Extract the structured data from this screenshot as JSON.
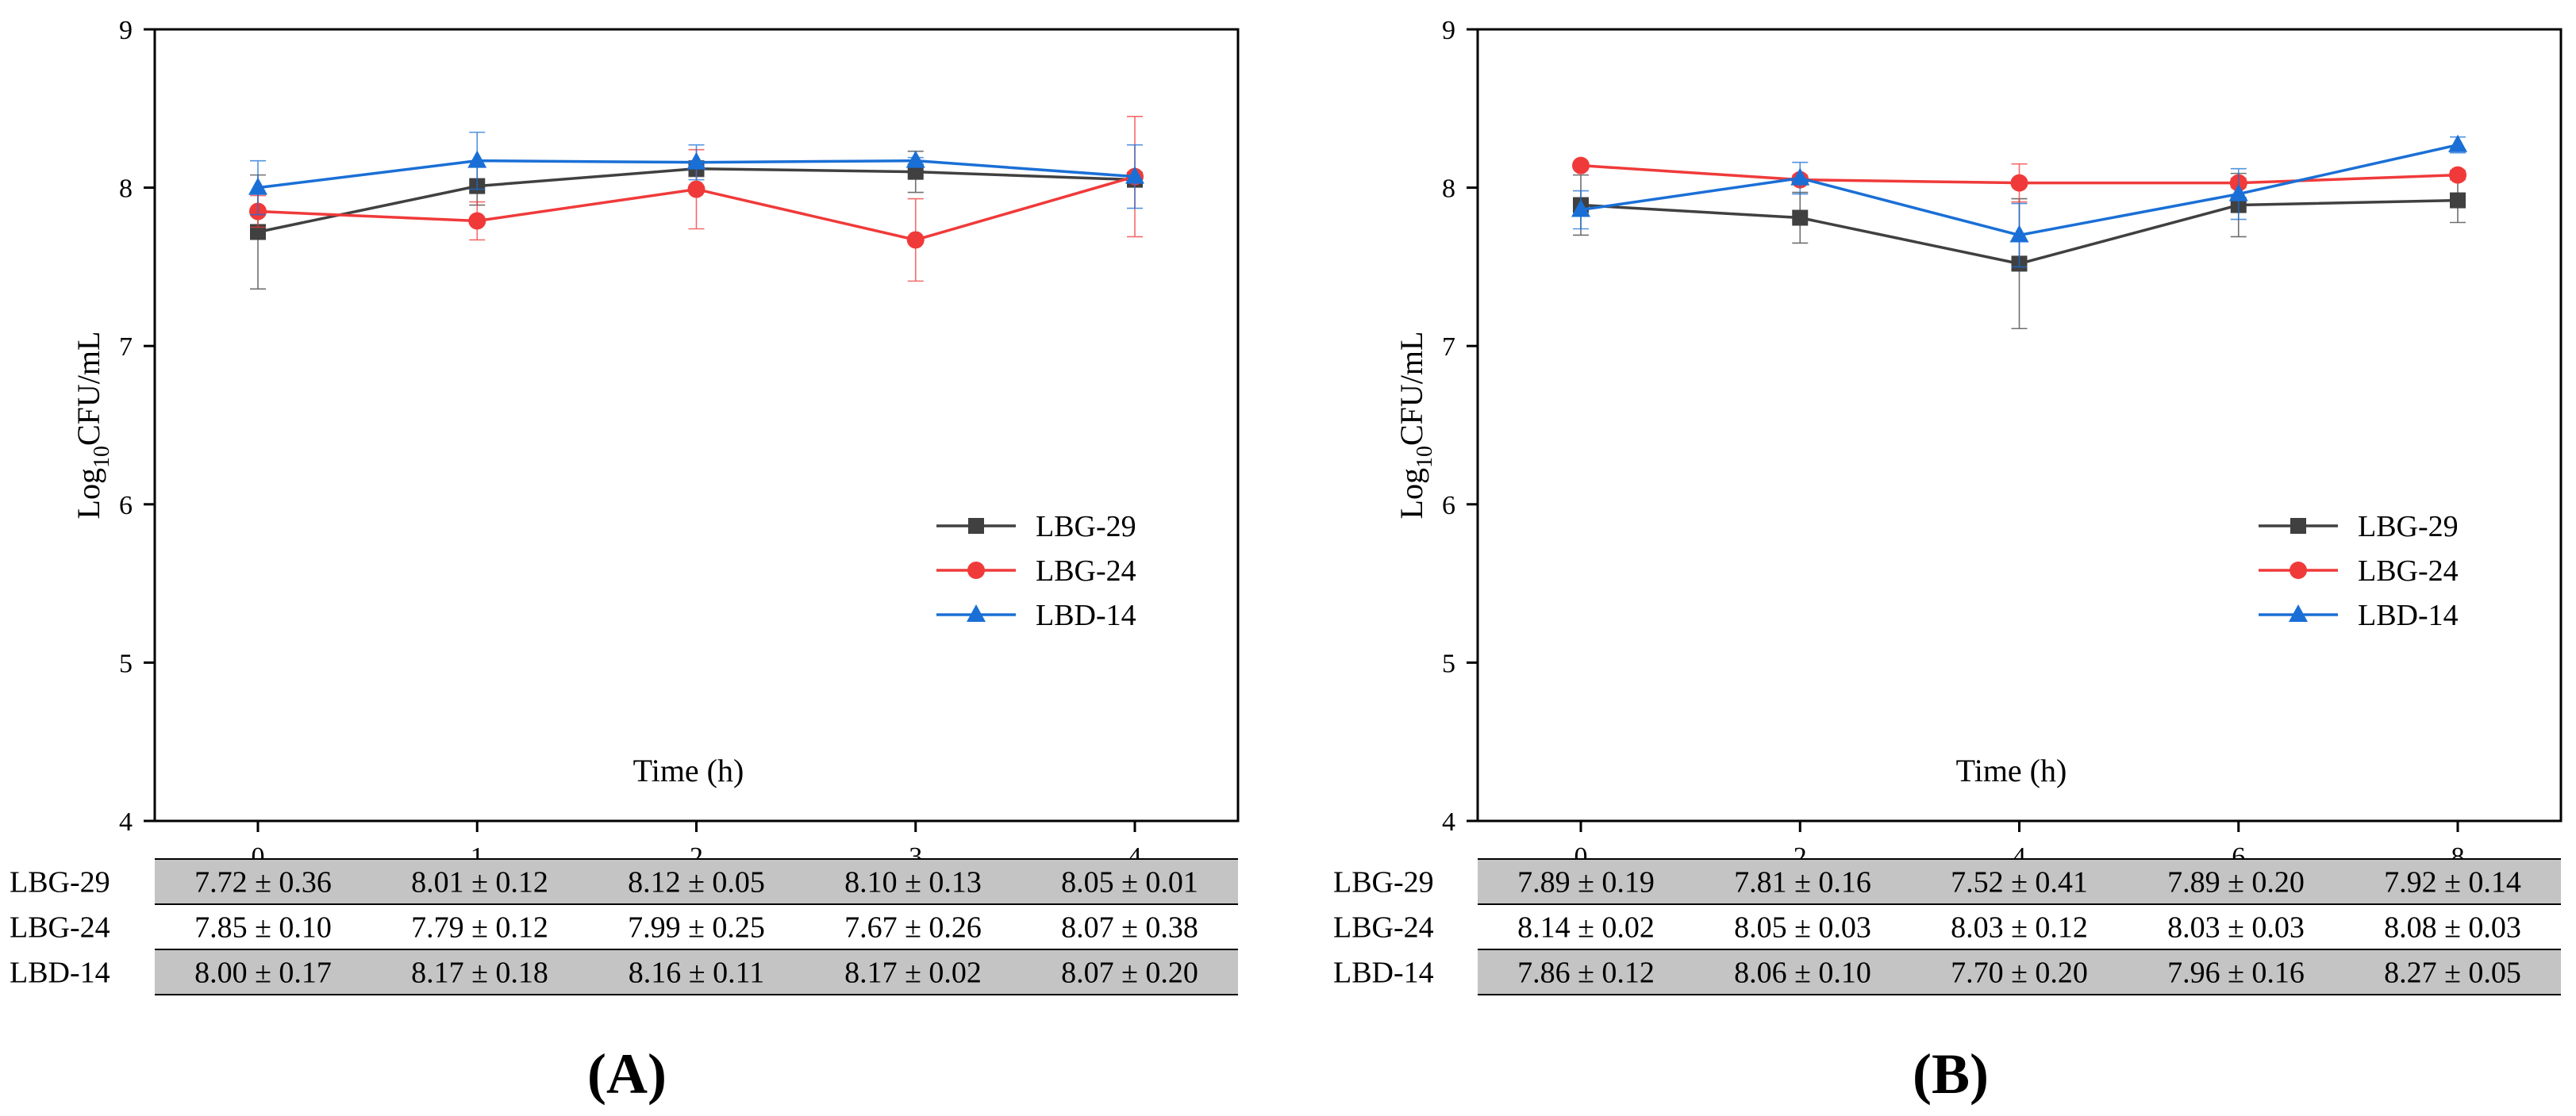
{
  "chart_data": [
    {
      "type": "line",
      "panel": "(A)",
      "xlabel": "Time (h)",
      "ylabel_main": "Log",
      "ylabel_sub": "10",
      "ylabel_rest": "CFU/mL",
      "x": [
        0,
        1,
        2,
        3,
        4
      ],
      "x_tick_labels": [
        "0",
        "1",
        "2",
        "3",
        "4"
      ],
      "ylim": [
        4,
        9
      ],
      "y_ticks": [
        4,
        5,
        6,
        7,
        8,
        9
      ],
      "y_tick_labels": [
        "4",
        "5",
        "6",
        "7",
        "8",
        "9"
      ],
      "legend_position": "right",
      "series": [
        {
          "name": "LBG-29",
          "color": "#404040",
          "marker": "square",
          "values": [
            7.72,
            8.01,
            8.12,
            8.1,
            8.05
          ],
          "errors": [
            0.36,
            0.12,
            0.05,
            0.13,
            0.01
          ],
          "table": [
            "7.72 ± 0.36",
            "8.01 ± 0.12",
            "8.12 ± 0.05",
            "8.10 ± 0.13",
            "8.05 ± 0.01"
          ]
        },
        {
          "name": "LBG-24",
          "color": "#f03a3a",
          "marker": "circle",
          "values": [
            7.85,
            7.79,
            7.99,
            7.67,
            8.07
          ],
          "errors": [
            0.1,
            0.12,
            0.25,
            0.26,
            0.38
          ],
          "table": [
            "7.85 ± 0.10",
            "7.79 ± 0.12",
            "7.99 ± 0.25",
            "7.67 ± 0.26",
            "8.07 ± 0.38"
          ]
        },
        {
          "name": "LBD-14",
          "color": "#1a6fd6",
          "marker": "triangle",
          "values": [
            8.0,
            8.17,
            8.16,
            8.17,
            8.07
          ],
          "errors": [
            0.17,
            0.18,
            0.11,
            0.02,
            0.2
          ],
          "table": [
            "8.00 ± 0.17",
            "8.17 ± 0.18",
            "8.16 ± 0.11",
            "8.17 ± 0.02",
            "8.07 ± 0.20"
          ]
        }
      ]
    },
    {
      "type": "line",
      "panel": "(B)",
      "xlabel": "Time (h)",
      "ylabel_main": "Log",
      "ylabel_sub": "10",
      "ylabel_rest": "CFU/mL",
      "x": [
        0,
        2,
        4,
        6,
        8
      ],
      "x_tick_labels": [
        "0",
        "2",
        "4",
        "6",
        "8"
      ],
      "ylim": [
        4,
        9
      ],
      "y_ticks": [
        4,
        5,
        6,
        7,
        8,
        9
      ],
      "y_tick_labels": [
        "4",
        "5",
        "6",
        "7",
        "8",
        "9"
      ],
      "legend_position": "right",
      "series": [
        {
          "name": "LBG-29",
          "color": "#404040",
          "marker": "square",
          "values": [
            7.89,
            7.81,
            7.52,
            7.89,
            7.92
          ],
          "errors": [
            0.19,
            0.16,
            0.41,
            0.2,
            0.14
          ],
          "table": [
            "7.89 ± 0.19",
            "7.81 ± 0.16",
            "7.52 ± 0.41",
            "7.89 ± 0.20",
            "7.92 ± 0.14"
          ]
        },
        {
          "name": "LBG-24",
          "color": "#f03a3a",
          "marker": "circle",
          "values": [
            8.14,
            8.05,
            8.03,
            8.03,
            8.08
          ],
          "errors": [
            0.02,
            0.03,
            0.12,
            0.03,
            0.03
          ],
          "table": [
            "8.14 ± 0.02",
            "8.05 ± 0.03",
            "8.03 ± 0.12",
            "8.03 ± 0.03",
            "8.08 ± 0.03"
          ]
        },
        {
          "name": "LBD-14",
          "color": "#1a6fd6",
          "marker": "triangle",
          "values": [
            7.86,
            8.06,
            7.7,
            7.96,
            8.27
          ],
          "errors": [
            0.12,
            0.1,
            0.2,
            0.16,
            0.05
          ],
          "table": [
            "7.86 ± 0.12",
            "8.06 ± 0.10",
            "7.70 ± 0.20",
            "7.96 ± 0.16",
            "8.27 ± 0.05"
          ]
        }
      ]
    }
  ]
}
